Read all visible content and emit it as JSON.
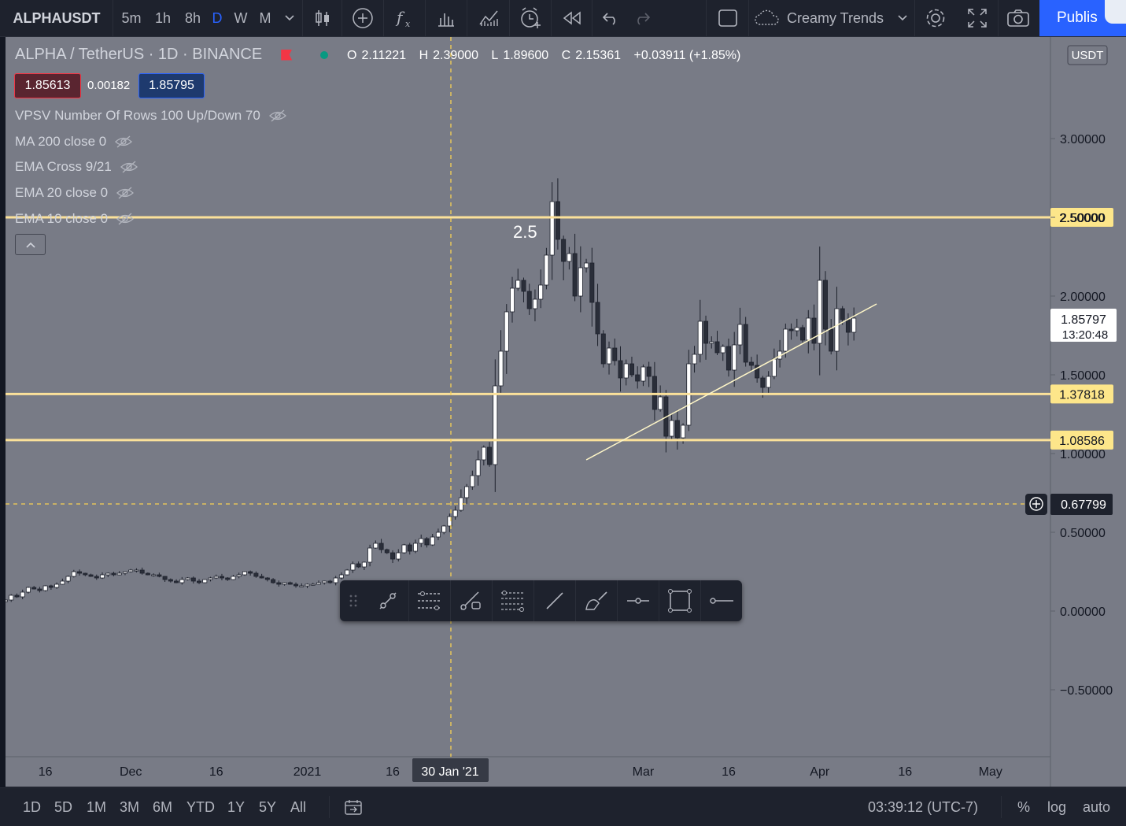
{
  "topbar": {
    "symbol": "ALPHAUSDT",
    "intervals": [
      "5m",
      "1h",
      "8h",
      "D",
      "W",
      "M"
    ],
    "active_interval": "D",
    "layout_name": "Creamy Trends",
    "publish_label": "Publis"
  },
  "legend": {
    "title": "ALPHA / TetherUS · 1D · BINANCE",
    "ohlc": {
      "o_label": "O",
      "o": "2.11221",
      "h_label": "H",
      "h": "2.39000",
      "l_label": "L",
      "l": "1.89600",
      "c_label": "C",
      "c": "2.15361",
      "change": "+0.03911 (+1.85%)"
    },
    "sell_price": "1.85613",
    "spread": "0.00182",
    "buy_price": "1.85795",
    "indicators": [
      "VPSV Number Of Rows 100 Up/Down 70",
      "MA 200 close 0",
      "EMA Cross 9/21",
      "EMA 20 close 0",
      "EMA 10 close 0"
    ]
  },
  "chart_data": {
    "type": "candlestick",
    "currency": "USDT",
    "y_ticks": [
      3.0,
      2.5,
      2.0,
      1.5,
      1.0,
      0.5,
      0.0,
      -0.5
    ],
    "y_tick_labels": [
      "3.00000",
      "2.50000",
      "2.00000",
      "1.50000",
      "1.00000",
      "0.50000",
      "0.00000",
      "−0.50000"
    ],
    "x_tick_labels": [
      "16",
      "Dec",
      "16",
      "2021",
      "16",
      "Mar",
      "16",
      "Apr",
      "16",
      "May"
    ],
    "crosshair_date": "30 Jan '21",
    "crosshair_price": "0.67799",
    "last_price": "1.85797",
    "countdown": "13:20:48",
    "horizontal_levels": [
      {
        "price": 2.5,
        "label": "2.50000"
      },
      {
        "price": 1.37818,
        "label": "1.37818"
      },
      {
        "price": 1.08586,
        "label": "1.08586"
      }
    ],
    "annotation": "2.5",
    "trendline": {
      "start": {
        "date": "2021-02-19",
        "price": 0.96
      },
      "end": {
        "date": "2021-04-11",
        "price": 1.95
      }
    },
    "daily_closes": [
      0.07,
      0.1,
      0.09,
      0.12,
      0.15,
      0.14,
      0.13,
      0.16,
      0.15,
      0.17,
      0.19,
      0.22,
      0.25,
      0.24,
      0.23,
      0.22,
      0.21,
      0.23,
      0.24,
      0.23,
      0.24,
      0.25,
      0.26,
      0.26,
      0.24,
      0.23,
      0.23,
      0.22,
      0.2,
      0.19,
      0.18,
      0.2,
      0.21,
      0.19,
      0.18,
      0.2,
      0.21,
      0.22,
      0.21,
      0.2,
      0.22,
      0.23,
      0.25,
      0.24,
      0.22,
      0.21,
      0.2,
      0.18,
      0.17,
      0.18,
      0.17,
      0.16,
      0.16,
      0.17,
      0.17,
      0.18,
      0.19,
      0.18,
      0.21,
      0.23,
      0.26,
      0.3,
      0.28,
      0.31,
      0.4,
      0.43,
      0.39,
      0.37,
      0.33,
      0.37,
      0.42,
      0.38,
      0.43,
      0.46,
      0.42,
      0.47,
      0.5,
      0.54,
      0.6,
      0.64,
      0.72,
      0.79,
      0.86,
      0.96,
      1.04,
      0.93,
      1.43,
      1.65,
      1.9,
      2.05,
      2.1,
      2.03,
      1.92,
      1.98,
      2.07,
      2.26,
      2.6,
      2.36,
      2.22,
      2.27,
      2.0,
      2.18,
      2.21,
      1.96,
      1.76,
      1.57,
      1.67,
      1.59,
      1.48,
      1.57,
      1.5,
      1.46,
      1.55,
      1.49,
      1.28,
      1.36,
      1.11,
      1.21,
      1.1,
      1.18,
      1.57,
      1.63,
      1.84,
      1.7,
      1.71,
      1.64,
      1.68,
      1.53,
      1.69,
      1.82,
      1.58,
      1.56,
      1.48,
      1.42,
      1.49,
      1.6,
      1.65,
      1.79,
      1.78,
      1.8,
      1.72,
      1.86,
      1.7,
      2.1,
      1.79,
      1.65,
      1.92,
      1.85,
      1.77,
      1.86
    ]
  },
  "bottombar": {
    "ranges": [
      "1D",
      "5D",
      "1M",
      "3M",
      "6M",
      "YTD",
      "1Y",
      "5Y",
      "All"
    ],
    "time": "03:39:12 (UTC-7)",
    "percent_label": "%",
    "log_label": "log",
    "auto_label": "auto"
  },
  "colors": {
    "background": "#787b86",
    "level_line": "#fbe19a",
    "level_label_bg": "#fde68a",
    "trendline": "#fff7c8",
    "crosshair": "#f7d154",
    "candle_up": "#ffffff",
    "candle_down": "#2a2e39"
  }
}
